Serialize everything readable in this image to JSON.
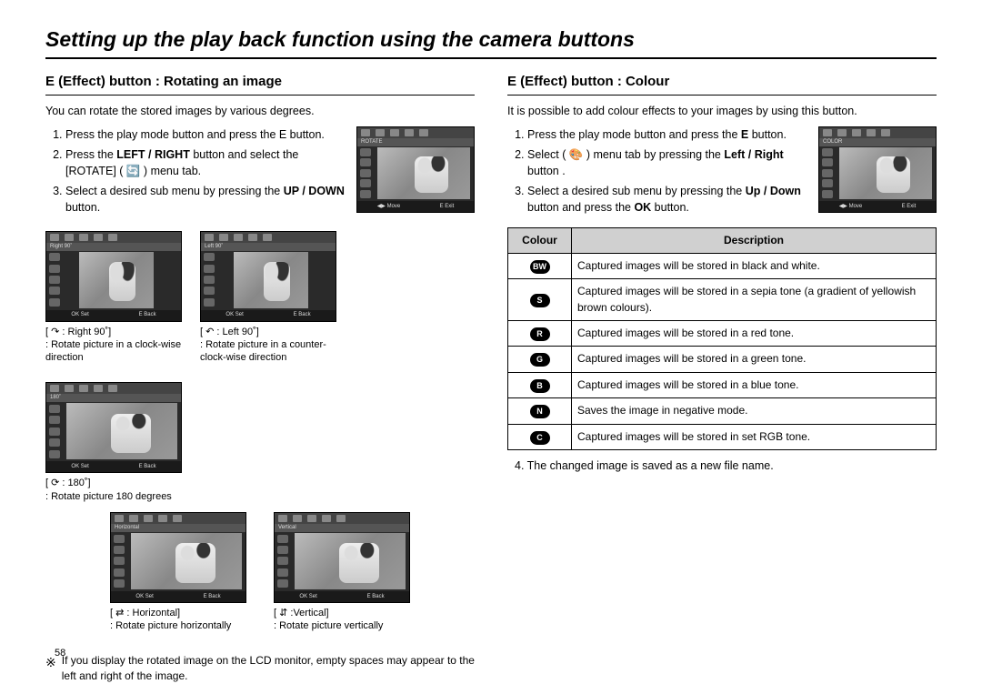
{
  "page_number": "58",
  "main_title": "Setting up the play back function using the camera buttons",
  "left": {
    "heading": "E (Effect) button : Rotating an image",
    "intro": "You can rotate the stored images by various degrees.",
    "steps": [
      "Press the play mode button and press the E button.",
      "Press the <b>LEFT / RIGHT</b> button and select the [ROTATE] ( 🔄 ) menu tab.",
      "Select a desired sub menu by pressing the <b>UP / DOWN</b> button."
    ],
    "main_thumb": {
      "band": "ROTATE",
      "foot_left": "◀▶ Move",
      "foot_right": "E  Exit"
    },
    "row1": [
      {
        "band": "Right 90˚",
        "portrait": true,
        "caption_title": "[  ↷   : Right 90˚]",
        "caption_sub": ": Rotate picture in a clock-wise direction"
      },
      {
        "band": "Left 90˚",
        "portrait": true,
        "caption_title": "[  ↶   : Left 90˚]",
        "caption_sub": ": Rotate picture in a counter-clock-wise direction"
      },
      {
        "band": "180˚",
        "portrait": false,
        "caption_title": "[  ⟳   : 180˚]",
        "caption_sub": ": Rotate picture 180 degrees"
      }
    ],
    "row2": [
      {
        "band": "Horizontal",
        "portrait": false,
        "caption_title": "[  ⇄   : Horizontal]",
        "caption_sub": ": Rotate picture horizontally"
      },
      {
        "band": "Vertical",
        "portrait": false,
        "caption_title": "[  ⇵   :Vertical]",
        "caption_sub": ": Rotate picture vertically"
      }
    ],
    "small_foot_left": "OK Set",
    "small_foot_right": "E  Back",
    "note_symbol": "※",
    "note": "If you display the rotated image on the LCD monitor, empty spaces may appear to the left and right of the image."
  },
  "right": {
    "heading": "E (Effect) button : Colour",
    "intro": "It is possible to add colour effects to your images by using this button.",
    "steps": [
      "Press the play mode button and press the <b>E</b> button.",
      "Select ( 🎨 ) menu tab by pressing the <b>Left / Right</b> button .",
      "Select a desired sub menu by pressing the <b>Up / Down</b> button and press the <b>OK</b> button."
    ],
    "main_thumb": {
      "band": "COLOR",
      "foot_left": "◀▶ Move",
      "foot_right": "E  Exit"
    },
    "table": {
      "head_colour": "Colour",
      "head_desc": "Description",
      "rows": [
        {
          "icon": "BW",
          "desc": "Captured images will be stored in   black and white."
        },
        {
          "icon": "S",
          "desc": "Captured images will be stored in a sepia tone (a gradient of yellowish brown colours)."
        },
        {
          "icon": "R",
          "desc": "Captured images will be stored in a red tone."
        },
        {
          "icon": "G",
          "desc": "Captured images will be stored in a green tone."
        },
        {
          "icon": "B",
          "desc": "Captured images will be stored in a blue tone."
        },
        {
          "icon": "N",
          "desc": "Saves the image in negative mode."
        },
        {
          "icon": "C",
          "desc": "Captured images will be stored in set RGB tone."
        }
      ]
    },
    "step4": "4. The changed image is saved as a new file name."
  }
}
